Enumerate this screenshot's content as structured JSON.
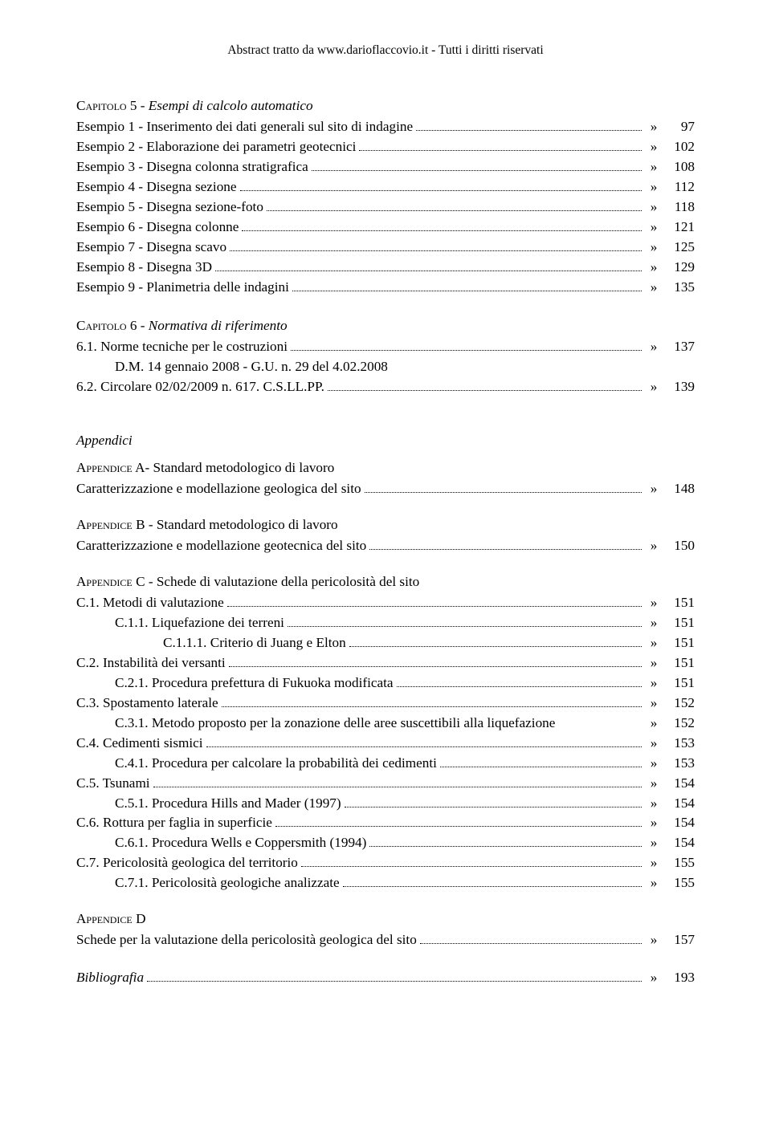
{
  "header": "Abstract tratto da www.darioflaccovio.it - Tutti i diritti riservati",
  "font": {
    "family": "Times New Roman",
    "body_size_pt": 13,
    "line_height": 1.45,
    "color": "#000000",
    "background": "#ffffff"
  },
  "cap5": {
    "prefix": "Capitolo",
    "number": "5 - ",
    "title": "Esempi di calcolo automatico",
    "items": [
      {
        "label": "Esempio 1 - Inserimento dei dati generali sul sito di indagine",
        "page": "97"
      },
      {
        "label": "Esempio 2 - Elaborazione dei parametri geotecnici",
        "page": "102"
      },
      {
        "label": "Esempio 3 - Disegna colonna stratigrafica",
        "page": "108"
      },
      {
        "label": "Esempio 4 - Disegna sezione",
        "page": "112"
      },
      {
        "label": "Esempio 5 - Disegna sezione-foto",
        "page": "118"
      },
      {
        "label": "Esempio 6 - Disegna colonne",
        "page": "121"
      },
      {
        "label": "Esempio 7 - Disegna scavo",
        "page": "125"
      },
      {
        "label": "Esempio 8 - Disegna 3D",
        "page": "129"
      },
      {
        "label": "Esempio 9 - Planimetria delle indagini",
        "page": "135"
      }
    ]
  },
  "cap6": {
    "prefix": "Capitolo",
    "number": "6 - ",
    "title": "Normativa di riferimento",
    "items": [
      {
        "label": "6.1.   Norme tecniche per le costruzioni",
        "page": "137",
        "cont": "D.M. 14 gennaio 2008 - G.U. n. 29 del 4.02.2008"
      },
      {
        "label": "6.2.   Circolare 02/02/2009 n. 617. C.S.LL.PP. ",
        "page": "139"
      }
    ]
  },
  "appendici_label": "Appendici",
  "appA": {
    "title_prefix": "Appendice",
    "title_rest": " A- Standard metodologico di lavoro",
    "line": {
      "label": "Caratterizzazione e modellazione geologica del sito",
      "page": "148"
    }
  },
  "appB": {
    "title_prefix": "Appendice",
    "title_rest": " B - Standard metodologico di lavoro",
    "line": {
      "label": "Caratterizzazione e modellazione geotecnica del sito",
      "page": "150"
    }
  },
  "appC": {
    "title_prefix": "Appendice",
    "title_rest": " C - Schede di valutazione della pericolosità del sito",
    "items": [
      {
        "label": "C.1.   Metodi di valutazione",
        "page": "151",
        "indent": 0
      },
      {
        "label": "C.1.1. Liquefazione dei terreni",
        "page": "151",
        "indent": 1
      },
      {
        "label": "C.1.1.1. Criterio di Juang e Elton",
        "page": "151",
        "indent": 2
      },
      {
        "label": "C.2.   Instabilità dei versanti",
        "page": "151",
        "indent": 0
      },
      {
        "label": "C.2.1. Procedura prefettura di Fukuoka modificata",
        "page": "151",
        "indent": 1
      },
      {
        "label": "C.3.   Spostamento laterale",
        "page": "152",
        "indent": 0
      },
      {
        "label": "C.3.1. Metodo proposto per la zonazione delle aree suscettibili alla liquefazione",
        "page": "152",
        "indent": 1,
        "nodots": true
      },
      {
        "label": "C.4.   Cedimenti sismici",
        "page": "153",
        "indent": 0
      },
      {
        "label": "C.4.1. Procedura per calcolare la probabilità dei cedimenti",
        "page": "153",
        "indent": 1
      },
      {
        "label": "C.5.   Tsunami",
        "page": "154",
        "indent": 0
      },
      {
        "label": "C.5.1. Procedura Hills and Mader (1997)",
        "page": "154",
        "indent": 1
      },
      {
        "label": "C.6.   Rottura per faglia in superficie",
        "page": "154",
        "indent": 0
      },
      {
        "label": "C.6.1. Procedura Wells e Coppersmith (1994)",
        "page": "154",
        "indent": 1
      },
      {
        "label": "C.7.   Pericolosità geologica del territorio",
        "page": "155",
        "indent": 0
      },
      {
        "label": "C.7.1. Pericolosità geologiche analizzate",
        "page": "155",
        "indent": 1
      }
    ]
  },
  "appD": {
    "title_prefix": "Appendice",
    "title_rest": " D",
    "line": {
      "label": "Schede per la valutazione della pericolosità geologica del sito",
      "page": "157"
    }
  },
  "bibliografia": {
    "label": "Bibliografia",
    "page": "193"
  },
  "quote": "»"
}
